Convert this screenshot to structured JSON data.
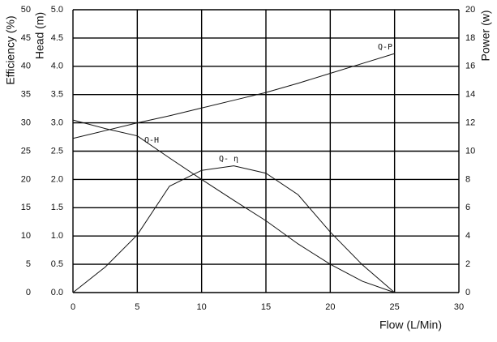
{
  "chart_data": {
    "type": "line",
    "x_label": "Flow  (L/Min)",
    "y_label": "Head (m)",
    "y2_label": "Power (w)",
    "y3_label": "Efficiency (%)",
    "x": [
      0,
      2.5,
      5,
      7.5,
      10,
      12.5,
      15,
      17.5,
      20,
      22.5,
      25
    ],
    "xlim": [
      0,
      30
    ],
    "xticks": [
      0,
      5,
      10,
      15,
      20,
      25,
      30
    ],
    "ylim": [
      0,
      5
    ],
    "yticks": [
      {
        "value": 0,
        "label": "0.0"
      },
      0.5,
      {
        "value": 1,
        "label": "1.0"
      },
      1.5,
      {
        "value": 2,
        "label": "2.0"
      },
      2.5,
      {
        "value": 3,
        "label": "3.0"
      },
      3.5,
      {
        "value": 4,
        "label": "4.0"
      },
      4.5,
      {
        "value": 5,
        "label": "5.0"
      }
    ],
    "y2lim": [
      0,
      20
    ],
    "y2ticks": [
      0,
      2,
      4,
      6,
      8,
      10,
      12,
      14,
      16,
      18,
      20
    ],
    "y3lim": [
      0,
      50
    ],
    "y3ticks": [
      0,
      5,
      10,
      15,
      20,
      25,
      30,
      35,
      40,
      45,
      50
    ],
    "grid": true,
    "series": [
      {
        "name": "Q-H",
        "color": "#111111",
        "axis": "y",
        "values": [
          3.05,
          2.9,
          2.77,
          2.38,
          2.0,
          1.63,
          1.27,
          0.86,
          0.5,
          0.2,
          0.0
        ]
      },
      {
        "name": "Q-P",
        "color": "#111111",
        "axis": "y2",
        "values": [
          10.9,
          11.45,
          12.0,
          12.5,
          13.05,
          13.6,
          14.15,
          14.8,
          15.5,
          16.2,
          16.9
        ]
      },
      {
        "name": "Q- η",
        "color": "#111111",
        "axis": "y3",
        "values": [
          0,
          4.5,
          10.2,
          18.8,
          21.6,
          22.4,
          21.1,
          17.3,
          10.7,
          4.9,
          0
        ]
      }
    ]
  }
}
